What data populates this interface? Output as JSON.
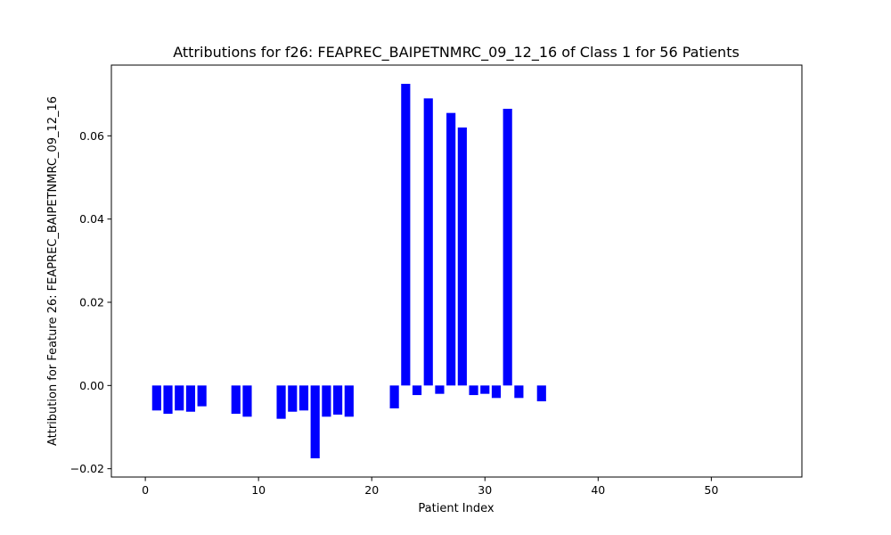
{
  "chart_data": {
    "type": "bar",
    "title": "Attributions for f26: FEAPREC_BAIPETNMRC_09_12_16 of Class 1 for 56 Patients",
    "xlabel": "Patient Index",
    "ylabel": "Attribution for Feature 26: FEAPREC_BAIPETNMRC_09_12_16",
    "xlim": [
      -3,
      58
    ],
    "ylim": [
      -0.022,
      0.077
    ],
    "x_ticks": [
      0,
      10,
      20,
      30,
      40,
      50
    ],
    "y_ticks": [
      -0.02,
      0.0,
      0.02,
      0.04,
      0.06
    ],
    "x_tick_labels": [
      "0",
      "10",
      "20",
      "30",
      "40",
      "50"
    ],
    "y_tick_labels": [
      "−0.02",
      "0.00",
      "0.02",
      "0.04",
      "0.06"
    ],
    "grid": false,
    "bar_color": "#0000ff",
    "x": [
      1,
      2,
      3,
      4,
      5,
      8,
      9,
      12,
      13,
      14,
      15,
      16,
      17,
      18,
      22,
      23,
      24,
      25,
      26,
      27,
      28,
      29,
      30,
      31,
      32,
      33,
      35
    ],
    "values": [
      -0.006,
      -0.0068,
      -0.006,
      -0.0063,
      -0.005,
      -0.0068,
      -0.0075,
      -0.008,
      -0.0063,
      -0.006,
      -0.0175,
      -0.0075,
      -0.007,
      -0.0075,
      -0.0055,
      0.0725,
      -0.0023,
      0.069,
      -0.002,
      0.0655,
      0.062,
      -0.0023,
      -0.002,
      -0.003,
      0.0665,
      -0.003,
      -0.0038
    ]
  }
}
